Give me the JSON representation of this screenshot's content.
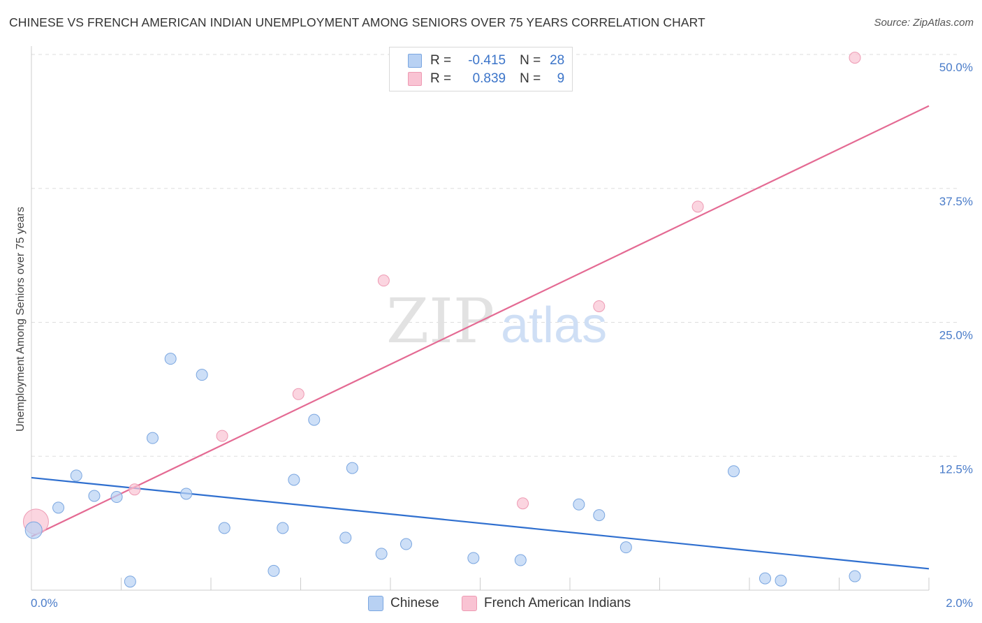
{
  "header": {
    "title": "CHINESE VS FRENCH AMERICAN INDIAN UNEMPLOYMENT AMONG SENIORS OVER 75 YEARS CORRELATION CHART",
    "source": "Source: ZipAtlas.com"
  },
  "legend": {
    "series1": {
      "r_label": "R =",
      "r_value": "-0.415",
      "n_label": "N =",
      "n_value": "28"
    },
    "series2": {
      "r_label": "R =",
      "r_value": "0.839",
      "n_label": "N =",
      "n_value": "9"
    }
  },
  "bottom_legend": {
    "series1": "Chinese",
    "series2": "French American Indians"
  },
  "watermark": {
    "zip": "ZIP",
    "atlas": "atlas"
  },
  "colors": {
    "chinese_fill": "#b8d1f3",
    "chinese_stroke": "#7aa6e0",
    "chinese_line": "#2f6fcf",
    "french_fill": "#f9c3d3",
    "french_stroke": "#ee9ab3",
    "french_line": "#e46a93",
    "tick_label": "#4a7cc9",
    "grid": "#dddddd"
  },
  "chart_data": {
    "type": "scatter",
    "title": "CHINESE VS FRENCH AMERICAN INDIAN UNEMPLOYMENT AMONG SENIORS OVER 75 YEARS CORRELATION CHART",
    "xlabel": "",
    "ylabel": "Unemployment Among Seniors over 75 years",
    "xlim": [
      0,
      2.0
    ],
    "ylim": [
      0,
      50
    ],
    "x_tick_labels": [
      "0.0%",
      "2.0%"
    ],
    "y_ticks": [
      12.5,
      25.0,
      37.5,
      50.0
    ],
    "y_tick_labels": [
      "12.5%",
      "25.0%",
      "37.5%",
      "50.0%"
    ],
    "grid": true,
    "series": [
      {
        "name": "Chinese",
        "R": -0.415,
        "N": 28,
        "points": [
          {
            "x": 0.005,
            "y": 5.6,
            "big": true
          },
          {
            "x": 0.06,
            "y": 7.7
          },
          {
            "x": 0.1,
            "y": 10.7
          },
          {
            "x": 0.14,
            "y": 8.8
          },
          {
            "x": 0.19,
            "y": 8.7
          },
          {
            "x": 0.22,
            "y": 0.8
          },
          {
            "x": 0.27,
            "y": 14.2
          },
          {
            "x": 0.31,
            "y": 21.6
          },
          {
            "x": 0.345,
            "y": 9.0
          },
          {
            "x": 0.38,
            "y": 20.1
          },
          {
            "x": 0.43,
            "y": 5.8
          },
          {
            "x": 0.54,
            "y": 1.8
          },
          {
            "x": 0.56,
            "y": 5.8
          },
          {
            "x": 0.585,
            "y": 10.3
          },
          {
            "x": 0.63,
            "y": 15.9
          },
          {
            "x": 0.7,
            "y": 4.9
          },
          {
            "x": 0.715,
            "y": 11.4
          },
          {
            "x": 0.78,
            "y": 3.4
          },
          {
            "x": 0.835,
            "y": 4.3
          },
          {
            "x": 0.985,
            "y": 3.0
          },
          {
            "x": 1.09,
            "y": 2.8
          },
          {
            "x": 1.22,
            "y": 8.0
          },
          {
            "x": 1.265,
            "y": 7.0
          },
          {
            "x": 1.325,
            "y": 4.0
          },
          {
            "x": 1.565,
            "y": 11.1
          },
          {
            "x": 1.635,
            "y": 1.1
          },
          {
            "x": 1.67,
            "y": 0.9
          },
          {
            "x": 1.835,
            "y": 1.3
          }
        ],
        "trendline": {
          "x": [
            0,
            2.0
          ],
          "y": [
            10.5,
            2.0
          ]
        }
      },
      {
        "name": "French American Indians",
        "R": 0.839,
        "N": 9,
        "points": [
          {
            "x": 0.01,
            "y": 6.4,
            "big": true
          },
          {
            "x": 0.23,
            "y": 9.4
          },
          {
            "x": 0.425,
            "y": 14.4
          },
          {
            "x": 0.595,
            "y": 18.3
          },
          {
            "x": 0.785,
            "y": 28.9
          },
          {
            "x": 1.095,
            "y": 8.1
          },
          {
            "x": 1.265,
            "y": 26.5
          },
          {
            "x": 1.485,
            "y": 35.8
          },
          {
            "x": 1.835,
            "y": 49.7
          }
        ],
        "trendline": {
          "x": [
            0,
            2.0
          ],
          "y": [
            5.0,
            45.2
          ]
        }
      }
    ]
  }
}
